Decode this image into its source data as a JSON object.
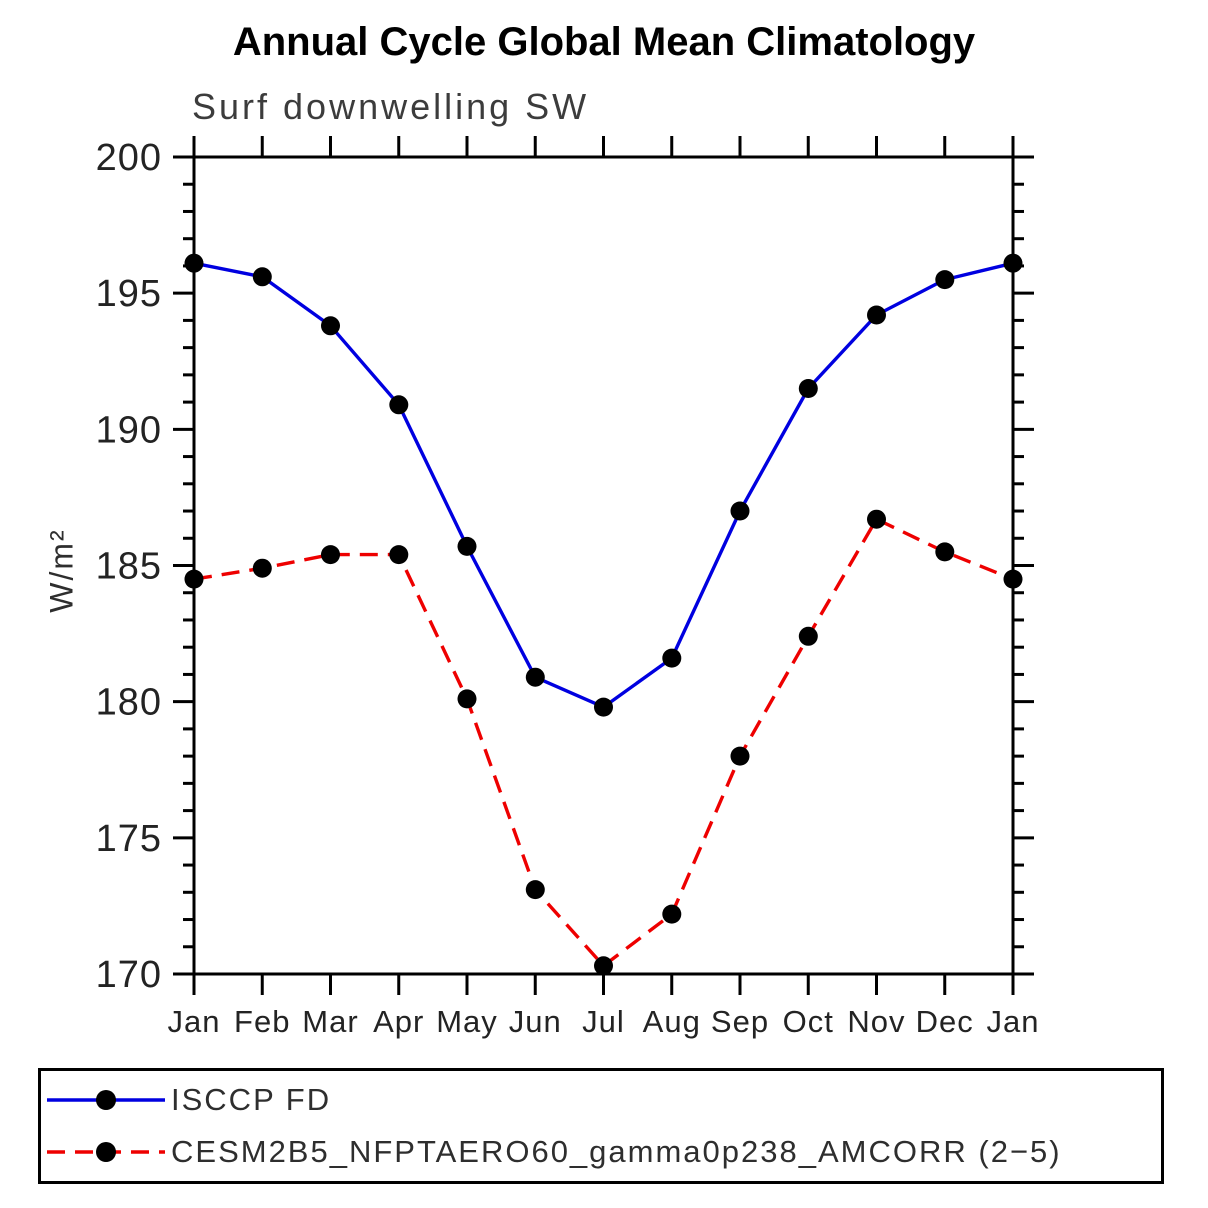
{
  "page": {
    "background": "#ffffff",
    "axis_color": "#000000",
    "text_color": "#2e2e2e"
  },
  "chart_data": {
    "type": "line",
    "title": "Annual Cycle Global Mean Climatology",
    "subtitle": "Surf downwelling SW",
    "xlabel": "",
    "ylabel": "W/m²",
    "categories": [
      "Jan",
      "Feb",
      "Mar",
      "Apr",
      "May",
      "Jun",
      "Jul",
      "Aug",
      "Sep",
      "Oct",
      "Nov",
      "Dec",
      "Jan"
    ],
    "ylim": [
      170,
      200
    ],
    "ytick_major_step": 5,
    "ytick_minor_step": 1,
    "ytick_labels": [
      "170",
      "175",
      "180",
      "185",
      "190",
      "195",
      "200"
    ],
    "grid": false,
    "legend_position": "bottom-left-box",
    "series": [
      {
        "name": "ISCCP FD",
        "color": "#0000e0",
        "line_style": "solid",
        "marker": "circle",
        "marker_color": "#000000",
        "values": [
          196.1,
          195.6,
          193.8,
          190.9,
          185.7,
          180.9,
          179.8,
          181.6,
          187.0,
          191.5,
          194.2,
          195.5,
          196.1
        ]
      },
      {
        "name": "CESM2B5_NFPTAERO60_gamma0p238_AMCORR (2−5)",
        "color": "#ee0000",
        "line_style": "dashed",
        "marker": "circle",
        "marker_color": "#000000",
        "values": [
          184.5,
          184.9,
          185.4,
          185.4,
          180.1,
          173.1,
          170.3,
          172.2,
          178.0,
          182.4,
          186.7,
          185.5,
          184.5
        ]
      }
    ]
  }
}
